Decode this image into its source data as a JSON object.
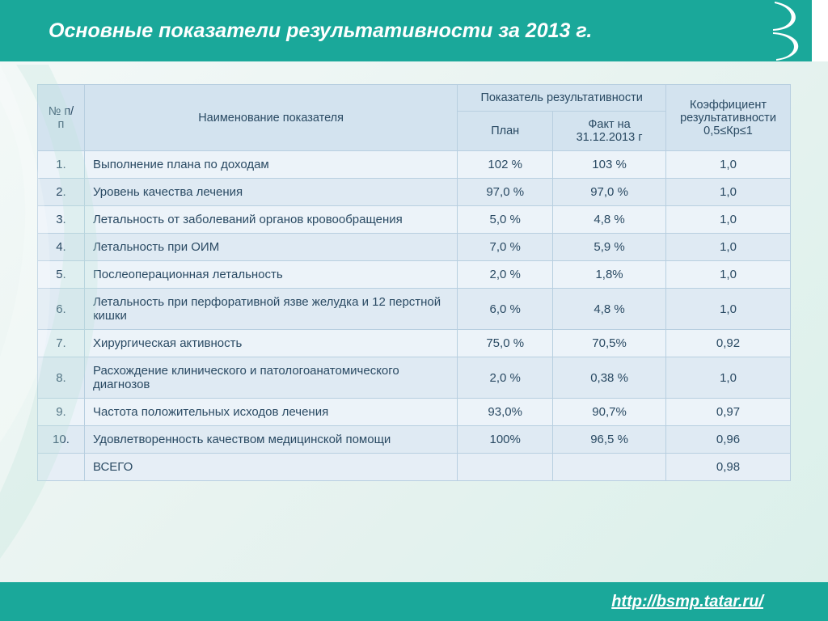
{
  "title": "Основные показатели результативности за 2013 г.",
  "footer_link": "http://bsmp.tatar.ru/",
  "colors": {
    "bar": "#1aa89a",
    "header_cell": "#d3e3ef",
    "row_odd": "#ecf3f9",
    "row_even": "#dfeaf3",
    "border": "#b8cfe0",
    "text": "#2a4a63"
  },
  "columns": {
    "num": "№ п/п",
    "name": "Наименование показателя",
    "group": "Показатель результативности",
    "plan": "План",
    "fact": "Факт на 31.12.2013 г",
    "coef": "Коэффициент результативности 0,5≤Кр≤1"
  },
  "rows": [
    {
      "n": "1.",
      "name": "Выполнение плана по доходам",
      "plan": "102 %",
      "fact": "103 %",
      "coef": "1,0"
    },
    {
      "n": "2.",
      "name": "Уровень качества  лечения",
      "plan": "97,0 %",
      "fact": "97,0  %",
      "coef": "1,0"
    },
    {
      "n": "3.",
      "name": "Летальность от заболеваний органов кровообращения",
      "plan": "5,0 %",
      "fact": "4,8 %",
      "coef": "1,0"
    },
    {
      "n": "4.",
      "name": "Летальность при ОИМ",
      "plan": "7,0 %",
      "fact": "5,9 %",
      "coef": "1,0"
    },
    {
      "n": "5.",
      "name": "Послеоперационная летальность",
      "plan": "2,0 %",
      "fact": "1,8%",
      "coef": "1,0"
    },
    {
      "n": "6.",
      "name": "Летальность при перфоративной язве желудка и 12 перстной кишки",
      "plan": "6,0 %",
      "fact": "4,8 %",
      "coef": "1,0"
    },
    {
      "n": "7.",
      "name": "Хирургическая активность",
      "plan": "75,0 %",
      "fact": "70,5%",
      "coef": "0,92"
    },
    {
      "n": "8.",
      "name": "Расхождение клинического и патологоанатомического диагнозов",
      "plan": "2,0 %",
      "fact": "0,38 %",
      "coef": "1,0"
    },
    {
      "n": "9.",
      "name": "Частота положительных исходов лечения",
      "plan": "93,0%",
      "fact": "90,7%",
      "coef": "0,97"
    },
    {
      "n": "10.",
      "name": "Удовлетворенность качеством медицинской помощи",
      "plan": "100%",
      "fact": "96,5 %",
      "coef": "0,96"
    }
  ],
  "total": {
    "label": "ВСЕГО",
    "coef": "0,98"
  }
}
